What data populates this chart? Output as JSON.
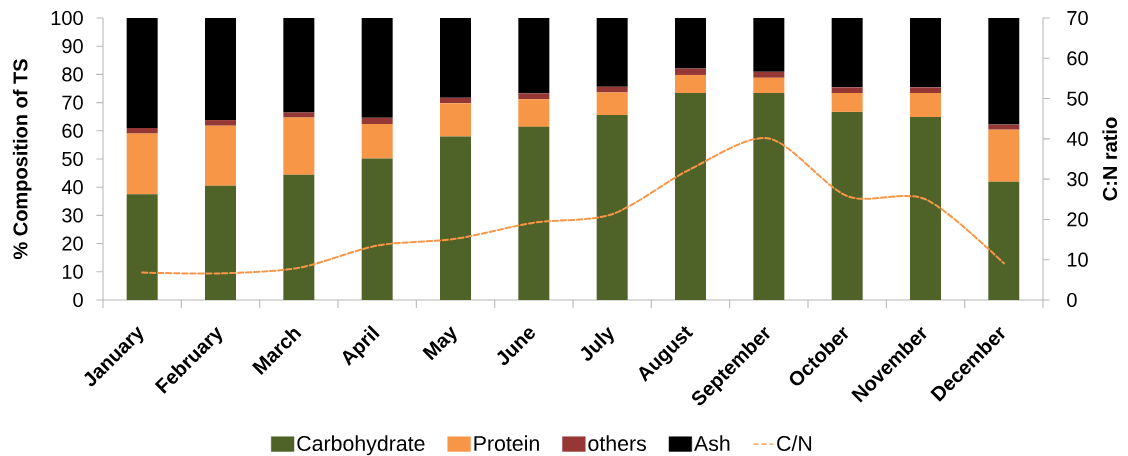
{
  "chart_data": {
    "type": "bar",
    "stacked": true,
    "categories": [
      "January",
      "February",
      "March",
      "April",
      "May",
      "June",
      "July",
      "August",
      "September",
      "October",
      "November",
      "December"
    ],
    "series": [
      {
        "name": "Carbohydrate",
        "color": "#4f6228",
        "values": [
          37.5,
          40.5,
          44.4,
          50.2,
          58.0,
          61.4,
          65.6,
          73.4,
          73.4,
          66.7,
          64.9,
          41.9
        ]
      },
      {
        "name": "Protein",
        "color": "#f79646",
        "values": [
          21.5,
          21.3,
          20.3,
          12.2,
          11.8,
          9.8,
          8.0,
          6.4,
          5.4,
          6.7,
          8.5,
          18.5
        ]
      },
      {
        "name": "others",
        "color": "#953735",
        "values": [
          2.0,
          2.0,
          1.8,
          2.2,
          1.9,
          2.1,
          2.0,
          2.3,
          2.1,
          2.0,
          2.0,
          1.8
        ]
      },
      {
        "name": "Ash",
        "color": "#000000",
        "values": [
          39.0,
          36.2,
          33.5,
          35.4,
          28.3,
          26.7,
          24.4,
          17.9,
          19.1,
          24.6,
          24.6,
          37.8
        ]
      },
      {
        "name": "C/N",
        "type": "line",
        "axis": "y2",
        "color": "#f79646",
        "line_style": "dashed",
        "values": [
          6.8,
          6.6,
          8.0,
          13.5,
          15.2,
          19.2,
          21.3,
          32.5,
          40.1,
          25.8,
          25.0,
          9.1
        ]
      }
    ],
    "ylabel": "% Composition of TS",
    "y2label": "C:N ratio",
    "ylim": [
      0,
      100
    ],
    "yticks": [
      0,
      10,
      20,
      30,
      40,
      50,
      60,
      70,
      80,
      90,
      100
    ],
    "y2lim": [
      0,
      70
    ],
    "y2ticks": [
      0,
      10,
      20,
      30,
      40,
      50,
      60,
      70
    ],
    "legend": "bottom"
  }
}
